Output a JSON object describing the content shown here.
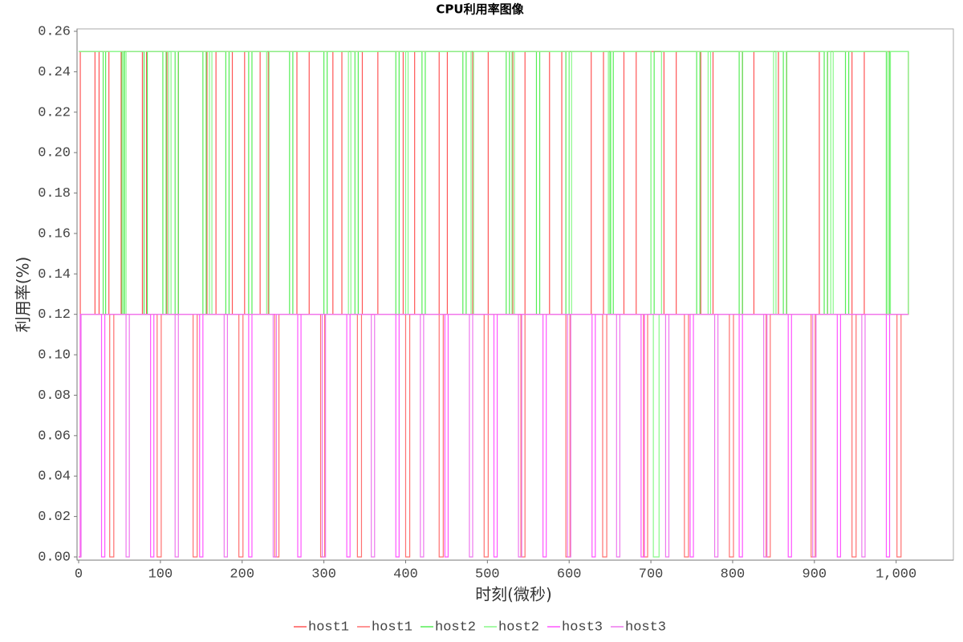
{
  "chart_data": {
    "type": "line",
    "step": true,
    "title": "CPU利用率图像",
    "x_label": "时刻(微秒)",
    "y_label": "利用率(%)",
    "xlim": [
      0,
      1070
    ],
    "ylim": [
      0,
      0.26
    ],
    "xticks": [
      0,
      100,
      200,
      300,
      400,
      500,
      600,
      700,
      800,
      900,
      {
        "value": 1000,
        "label": "1,000"
      }
    ],
    "yticks": [
      {
        "value": 0,
        "label": "0.00"
      },
      {
        "value": 0.02,
        "label": "0.02"
      },
      {
        "value": 0.04,
        "label": "0.04"
      },
      {
        "value": 0.06,
        "label": "0.06"
      },
      {
        "value": 0.08,
        "label": "0.08"
      },
      {
        "value": 0.1,
        "label": "0.10"
      },
      {
        "value": 0.12,
        "label": "0.12"
      },
      {
        "value": 0.14,
        "label": "0.14"
      },
      {
        "value": 0.16,
        "label": "0.16"
      },
      {
        "value": 0.18,
        "label": "0.18"
      },
      {
        "value": 0.2,
        "label": "0.20"
      },
      {
        "value": 0.22,
        "label": "0.22"
      },
      {
        "value": 0.24,
        "label": "0.24"
      },
      {
        "value": 0.26,
        "label": "0.26"
      }
    ],
    "grid": false,
    "legend": "bottom",
    "series": [
      {
        "name": "host1",
        "color": "#ff5555",
        "x": [
          0,
          2,
          20,
          25,
          37,
          52,
          78,
          83,
          108,
          122,
          157,
          168,
          188,
          203,
          222,
          232,
          267,
          282,
          311,
          322,
          347,
          366,
          397,
          411,
          441,
          451,
          482,
          501,
          531,
          546,
          576,
          591,
          627,
          642,
          667,
          682,
          716,
          731,
          761,
          776,
          812,
          826,
          856,
          866,
          906,
          916,
          946,
          961,
          992,
          1015
        ],
        "values": [
          0,
          0.25,
          0.12,
          0.25,
          0.12,
          0.25,
          0.12,
          0.25,
          0.12,
          0.25,
          0.12,
          0.25,
          0.12,
          0.25,
          0.12,
          0.25,
          0.12,
          0.25,
          0.12,
          0.25,
          0.12,
          0.25,
          0.12,
          0.25,
          0.12,
          0.25,
          0.12,
          0.25,
          0.12,
          0.25,
          0.12,
          0.25,
          0.12,
          0.25,
          0.12,
          0.25,
          0.12,
          0.25,
          0.12,
          0.25,
          0.12,
          0.25,
          0.12,
          0.25,
          0.12,
          0.25,
          0.12,
          0.25,
          0.12,
          0.25
        ]
      },
      {
        "name": "host1",
        "color": "#ff7070",
        "x": [
          0,
          2,
          38,
          43,
          96,
          101,
          140,
          145,
          196,
          201,
          240,
          245,
          296,
          301,
          341,
          346,
          400,
          405,
          441,
          446,
          496,
          501,
          541,
          546,
          596,
          601,
          641,
          646,
          691,
          696,
          741,
          746,
          796,
          801,
          841,
          846,
          896,
          901,
          946,
          951,
          1001,
          1006,
          1015
        ],
        "values": [
          0,
          0.12,
          0,
          0.12,
          0,
          0.12,
          0,
          0.12,
          0,
          0.12,
          0,
          0.12,
          0,
          0.12,
          0,
          0.12,
          0,
          0.12,
          0,
          0.12,
          0,
          0.12,
          0,
          0.12,
          0,
          0.12,
          0,
          0.12,
          0,
          0.12,
          0,
          0.12,
          0,
          0.12,
          0,
          0.12,
          0,
          0.12,
          0,
          0.12,
          0,
          0.12,
          0.12
        ]
      },
      {
        "name": "host2",
        "color": "#55ee55",
        "x": [
          0,
          30,
          33,
          53,
          56,
          80,
          84,
          103,
          107,
          118,
          122,
          152,
          156,
          180,
          184,
          208,
          212,
          258,
          262,
          300,
          304,
          338,
          342,
          388,
          392,
          420,
          424,
          470,
          474,
          523,
          527,
          560,
          564,
          596,
          600,
          650,
          654,
          700,
          704,
          756,
          760,
          808,
          812,
          862,
          866,
          912,
          916,
          938,
          942,
          988,
          992,
          1015
        ],
        "values": [
          0.25,
          0.12,
          0.25,
          0.12,
          0.25,
          0.12,
          0.25,
          0.12,
          0.25,
          0.12,
          0.25,
          0.12,
          0.25,
          0.12,
          0.25,
          0.12,
          0.25,
          0.12,
          0.25,
          0.12,
          0.25,
          0.12,
          0.25,
          0.12,
          0.25,
          0.12,
          0.25,
          0.12,
          0.25,
          0.12,
          0.25,
          0.12,
          0.25,
          0.12,
          0.25,
          0.12,
          0.25,
          0.12,
          0.25,
          0.12,
          0.25,
          0.12,
          0.25,
          0.12,
          0.25,
          0.12,
          0.25,
          0.12,
          0.25,
          0.12,
          0.25,
          0.12
        ]
      },
      {
        "name": "host2",
        "color": "#88f888",
        "x": [
          0,
          55,
          58,
          110,
          113,
          160,
          163,
          230,
          233,
          330,
          333,
          400,
          403,
          480,
          483,
          530,
          533,
          600,
          603,
          648,
          651,
          700,
          703,
          710,
          713,
          770,
          773,
          850,
          853,
          920,
          923,
          990,
          993,
          1015
        ],
        "values": [
          0.25,
          0.12,
          0.25,
          0.12,
          0.25,
          0.12,
          0.25,
          0.12,
          0.25,
          0.12,
          0.25,
          0.12,
          0.25,
          0.12,
          0.25,
          0.12,
          0.25,
          0.12,
          0.25,
          0.12,
          0.25,
          0.12,
          0,
          0.12,
          0.25,
          0.12,
          0.25,
          0.12,
          0.25,
          0.12,
          0.25,
          0.12,
          0.25,
          0.12
        ]
      },
      {
        "name": "host3",
        "color": "#ff55ff",
        "x": [
          0,
          2,
          28,
          32,
          88,
          92,
          148,
          152,
          208,
          212,
          268,
          272,
          328,
          332,
          388,
          392,
          448,
          452,
          508,
          512,
          568,
          572,
          628,
          632,
          688,
          692,
          748,
          752,
          808,
          812,
          868,
          872,
          928,
          932,
          988,
          992,
          1015
        ],
        "values": [
          0,
          0.12,
          0,
          0.12,
          0,
          0.12,
          0,
          0.12,
          0,
          0.12,
          0,
          0.12,
          0,
          0.12,
          0,
          0.12,
          0,
          0.12,
          0,
          0.12,
          0,
          0.12,
          0,
          0.12,
          0,
          0.12,
          0,
          0.12,
          0,
          0.12,
          0,
          0.12,
          0,
          0.12,
          0,
          0.12,
          0.12
        ]
      },
      {
        "name": "host3",
        "color": "#ee77ee",
        "x": [
          0,
          3,
          58,
          62,
          118,
          122,
          178,
          182,
          238,
          242,
          298,
          302,
          358,
          362,
          418,
          422,
          478,
          482,
          538,
          542,
          598,
          602,
          658,
          662,
          718,
          722,
          778,
          782,
          838,
          842,
          898,
          902,
          958,
          962,
          1015
        ],
        "values": [
          0,
          0.12,
          0,
          0.12,
          0,
          0.12,
          0,
          0.12,
          0,
          0.12,
          0,
          0.12,
          0,
          0.12,
          0,
          0.12,
          0,
          0.12,
          0,
          0.12,
          0,
          0.12,
          0,
          0.12,
          0,
          0.12,
          0,
          0.12,
          0,
          0.12,
          0,
          0.12,
          0,
          0.12,
          0.12
        ]
      }
    ]
  }
}
